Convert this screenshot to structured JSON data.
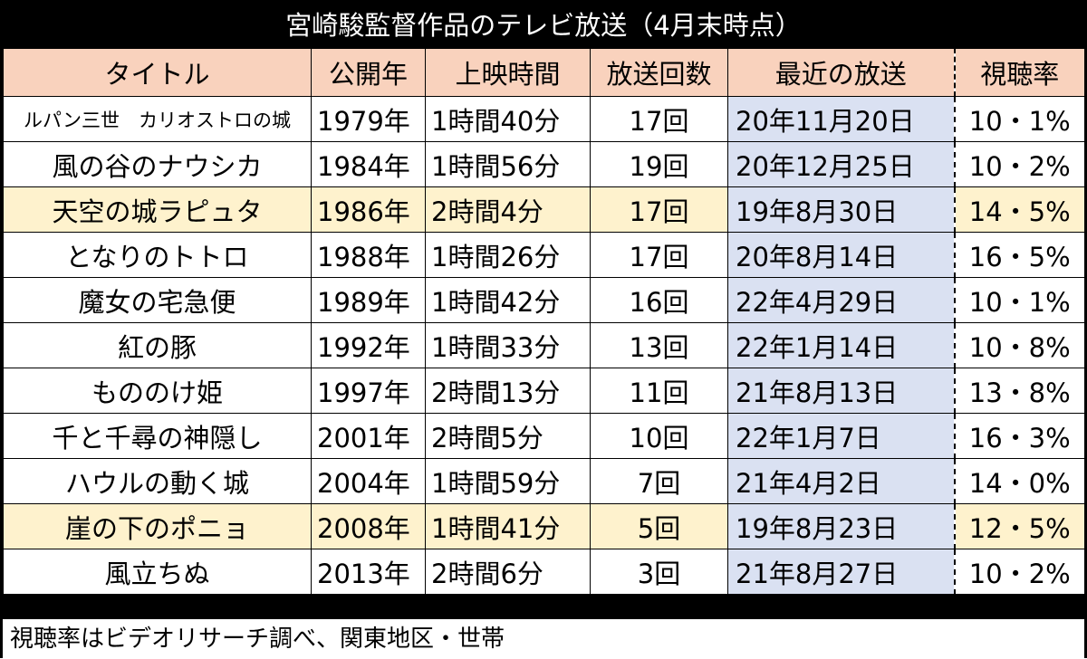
{
  "title": "宮崎駿監督作品のテレビ放送（4月末時点）",
  "headers": {
    "title": "タイトル",
    "year": "公開年",
    "runtime": "上映時間",
    "count": "放送回数",
    "recent": "最近の放送",
    "rating": "視聴率"
  },
  "rows": [
    {
      "title": "ルパン三世　カリオストロの城",
      "year": "1979年",
      "runtime": "1時間40分",
      "count": "17回",
      "recent": "20年11月20日",
      "rating": "10・1%"
    },
    {
      "title": "風の谷のナウシカ",
      "year": "1984年",
      "runtime": "1時間56分",
      "count": "19回",
      "recent": "20年12月25日",
      "rating": "10・2%"
    },
    {
      "title": "天空の城ラピュタ",
      "year": "1986年",
      "runtime": "2時間4分",
      "count": "17回",
      "recent": "19年8月30日",
      "rating": "14・5%"
    },
    {
      "title": "となりのトトロ",
      "year": "1988年",
      "runtime": "1時間26分",
      "count": "17回",
      "recent": "20年8月14日",
      "rating": "16・5%"
    },
    {
      "title": "魔女の宅急便",
      "year": "1989年",
      "runtime": "1時間42分",
      "count": "16回",
      "recent": "22年4月29日",
      "rating": "10・1%"
    },
    {
      "title": "紅の豚",
      "year": "1992年",
      "runtime": "1時間33分",
      "count": "13回",
      "recent": "22年1月14日",
      "rating": "10・8%"
    },
    {
      "title": "もののけ姫",
      "year": "1997年",
      "runtime": "2時間13分",
      "count": "11回",
      "recent": "21年8月13日",
      "rating": "13・8%"
    },
    {
      "title": "千と千尋の神隠し",
      "year": "2001年",
      "runtime": "2時間5分",
      "count": "10回",
      "recent": "22年1月7日",
      "rating": "16・3%"
    },
    {
      "title": "ハウルの動く城",
      "year": "2004年",
      "runtime": "1時間59分",
      "count": "7回",
      "recent": "21年4月2日",
      "rating": "14・0%"
    },
    {
      "title": "崖の下のポニョ",
      "year": "2008年",
      "runtime": "1時間41分",
      "count": "5回",
      "recent": "19年8月23日",
      "rating": "12・5%"
    },
    {
      "title": "風立ちぬ",
      "year": "2013年",
      "runtime": "2時間6分",
      "count": "3回",
      "recent": "21年8月27日",
      "rating": "10・2%"
    }
  ],
  "footnote": "視聴率はビデオリサーチ調べ、関東地区・世帯"
}
